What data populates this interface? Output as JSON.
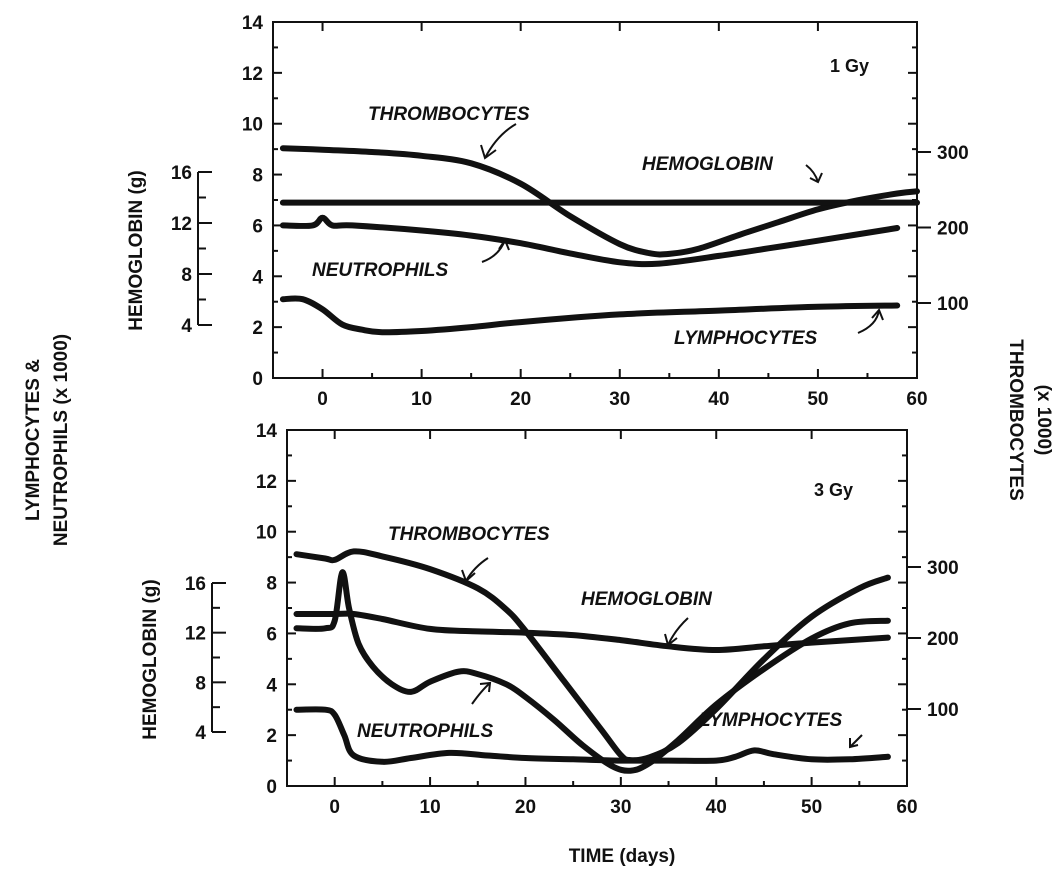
{
  "shared_labels": {
    "left_axis_title_line1": "LYMPHOCYTES &",
    "left_axis_title_line2": "NEUTROPHILS (x 1000)",
    "right_axis_title_line1": "THROMBOCYTES",
    "right_axis_title_line2": "(x 1000)",
    "x_axis_title": "TIME (days)",
    "hemoglobin_axis_title": "HEMOGLOBIN (g)"
  },
  "chart_data": [
    {
      "type": "line",
      "panel": "top",
      "annotation": "1 Gy",
      "xlabel": "TIME (days)",
      "ylabel": "LYMPHOCYTES & NEUTROPHILS (x 1000)",
      "xlim": [
        -5,
        60
      ],
      "ylim": [
        0,
        14
      ],
      "x_ticks": [
        0,
        10,
        20,
        30,
        40,
        50,
        60
      ],
      "y_ticks": [
        0,
        2,
        4,
        6,
        8,
        10,
        12,
        14
      ],
      "hemoglobin_axis": {
        "title": "HEMOGLOBIN (g)",
        "ticks": [
          4,
          8,
          12,
          16
        ],
        "range": [
          4,
          16
        ]
      },
      "thrombocyte_axis": {
        "title": "THROMBOCYTES (x 1000)",
        "ticks": [
          100,
          200,
          300
        ],
        "range": [
          100,
          300
        ]
      },
      "series": [
        {
          "name": "THROMBOCYTES",
          "label": "THROMBOCYTES",
          "axis": "thrombocytes",
          "x": [
            -4,
            0,
            5,
            10,
            15,
            20,
            25,
            30,
            33,
            35,
            38,
            42,
            46,
            50,
            54,
            58,
            60
          ],
          "y": [
            305,
            303,
            300,
            295,
            285,
            258,
            215,
            178,
            166,
            165,
            172,
            190,
            207,
            224,
            236,
            245,
            248
          ]
        },
        {
          "name": "HEMOGLOBIN",
          "label": "HEMOGLOBIN",
          "axis": "hemoglobin",
          "x": [
            -4,
            60
          ],
          "y": [
            13.6,
            13.6
          ]
        },
        {
          "name": "NEUTROPHILS",
          "label": "NEUTROPHILS",
          "axis": "left",
          "x": [
            -4,
            -1,
            0,
            1,
            3,
            10,
            15,
            20,
            25,
            30,
            34,
            40,
            45,
            50,
            58
          ],
          "y": [
            6.0,
            6.0,
            6.3,
            6.0,
            6.0,
            5.8,
            5.6,
            5.3,
            4.9,
            4.55,
            4.5,
            4.8,
            5.1,
            5.4,
            5.9
          ]
        },
        {
          "name": "LYMPHOCYTES",
          "label": "LYMPHOCYTES",
          "axis": "left",
          "x": [
            -4,
            -2,
            0,
            2,
            4,
            6,
            10,
            15,
            20,
            30,
            40,
            50,
            58
          ],
          "y": [
            3.1,
            3.1,
            2.7,
            2.1,
            1.9,
            1.8,
            1.85,
            2.0,
            2.2,
            2.5,
            2.65,
            2.8,
            2.85
          ]
        }
      ]
    },
    {
      "type": "line",
      "panel": "bottom",
      "annotation": "3 Gy",
      "xlabel": "TIME (days)",
      "ylabel": "LYMPHOCYTES & NEUTROPHILS (x 1000)",
      "xlim": [
        -5,
        60
      ],
      "ylim": [
        0,
        14
      ],
      "x_ticks": [
        0,
        10,
        20,
        30,
        40,
        50,
        60
      ],
      "y_ticks": [
        0,
        2,
        4,
        6,
        8,
        10,
        12,
        14
      ],
      "hemoglobin_axis": {
        "title": "HEMOGLOBIN (g)",
        "ticks": [
          4,
          8,
          12,
          16
        ],
        "range": [
          4,
          16
        ]
      },
      "thrombocyte_axis": {
        "title": "THROMBOCYTES (x 1000)",
        "ticks": [
          100,
          200,
          300
        ],
        "range": [
          100,
          300
        ]
      },
      "series": [
        {
          "name": "THROMBOCYTES",
          "label": "THROMBOCYTES",
          "axis": "thrombocytes",
          "x": [
            -4,
            -1,
            0,
            2,
            5,
            10,
            15,
            18,
            20,
            24,
            28,
            30,
            31,
            33,
            36,
            40,
            45,
            50,
            55,
            58
          ],
          "y": [
            318,
            312,
            310,
            322,
            315,
            297,
            270,
            240,
            210,
            140,
            70,
            35,
            28,
            32,
            52,
            100,
            170,
            230,
            270,
            285
          ]
        },
        {
          "name": "HEMOGLOBIN",
          "label": "HEMOGLOBIN",
          "axis": "hemoglobin",
          "x": [
            -4,
            0,
            2,
            5,
            10,
            15,
            20,
            25,
            30,
            35,
            40,
            45,
            50,
            58
          ],
          "y": [
            13.5,
            13.5,
            13.5,
            13.1,
            12.3,
            12.1,
            12.0,
            11.8,
            11.4,
            10.9,
            10.6,
            10.9,
            11.2,
            11.6
          ]
        },
        {
          "name": "NEUTROPHILS",
          "label": "NEUTROPHILS",
          "axis": "left",
          "x": [
            -4,
            -1,
            0,
            0.8,
            1.5,
            2.5,
            4,
            6,
            8,
            10,
            13,
            15,
            18,
            20,
            23,
            26,
            29,
            31,
            33,
            36,
            40,
            45,
            50,
            54,
            58
          ],
          "y": [
            6.2,
            6.2,
            6.5,
            8.4,
            7.0,
            5.6,
            4.7,
            4.0,
            3.7,
            4.1,
            4.5,
            4.4,
            4.0,
            3.5,
            2.6,
            1.6,
            0.8,
            0.6,
            0.9,
            1.8,
            3.2,
            4.6,
            5.8,
            6.4,
            6.5
          ]
        },
        {
          "name": "LYMPHOCYTES",
          "label": "LYMPHOCYTES",
          "axis": "left",
          "x": [
            -4,
            -1,
            0,
            1,
            2,
            5,
            8,
            12,
            16,
            20,
            25,
            30,
            35,
            40,
            42,
            44,
            46,
            50,
            54,
            58
          ],
          "y": [
            3.0,
            3.0,
            2.8,
            2.0,
            1.2,
            0.95,
            1.1,
            1.3,
            1.2,
            1.1,
            1.05,
            1.0,
            1.0,
            1.0,
            1.15,
            1.4,
            1.25,
            1.05,
            1.05,
            1.15
          ]
        }
      ]
    }
  ]
}
